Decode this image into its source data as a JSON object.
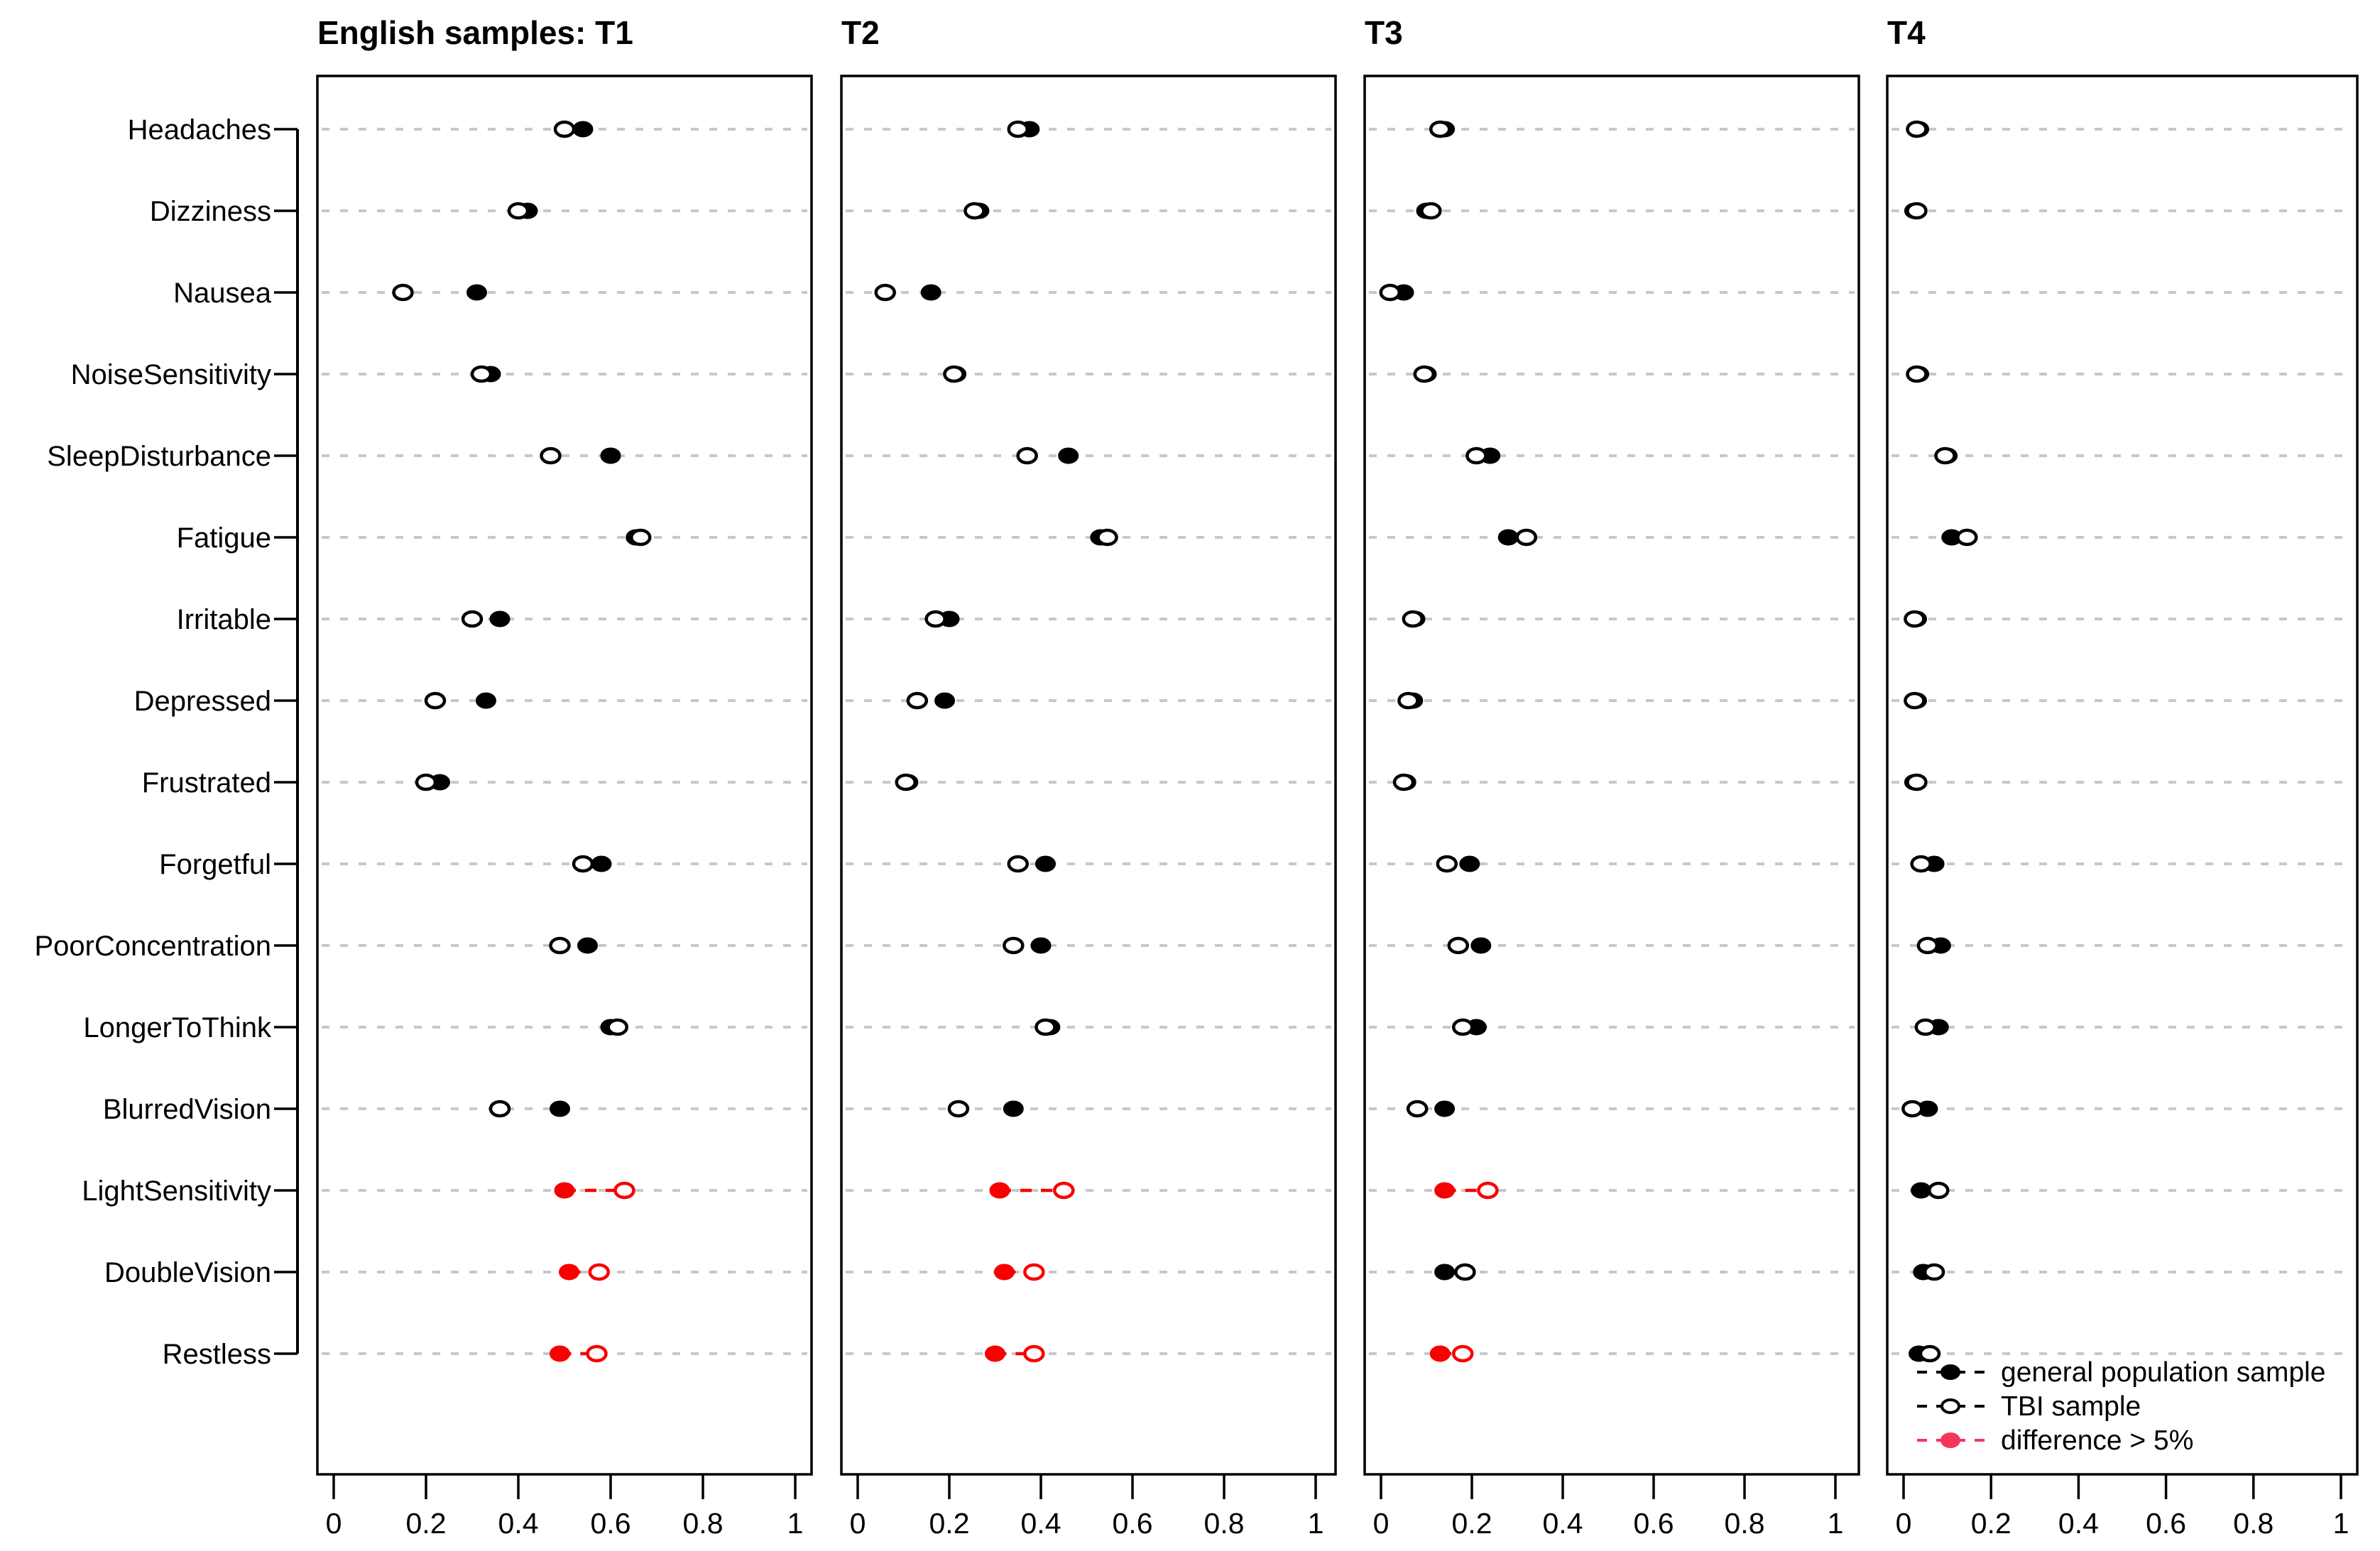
{
  "page": {
    "background": "#ffffff"
  },
  "colors": {
    "black": "#000000",
    "plot_red": "#f80000",
    "legend_red": "#f5365c",
    "grid": "#c8c8c8",
    "open_fill": "#ffffff"
  },
  "figure": {
    "panel_titles": [
      "English samples: T1",
      "T2",
      "T3",
      "T4"
    ],
    "legend": {
      "items": [
        {
          "label": "general population sample",
          "marker": "filled",
          "color": "#000000"
        },
        {
          "label": "TBI sample",
          "marker": "open",
          "color": "#000000"
        },
        {
          "label": "difference > 5%",
          "marker": "filled",
          "color": "#f5365c"
        }
      ]
    }
  },
  "chart_data": {
    "type": "scatter",
    "subtype": "Cleveland dot plot, 4 panels, proportion endorsing each symptom",
    "title": "English samples: T1 / T2 / T3 / T4",
    "categories": [
      "Headaches",
      "Dizziness",
      "Nausea",
      "NoiseSensitivity",
      "SleepDisturbance",
      "Fatigue",
      "Irritable",
      "Depressed",
      "Frustrated",
      "Forgetful",
      "PoorConcentration",
      "LongerToThink",
      "BlurredVision",
      "LightSensitivity",
      "DoubleVision",
      "Restless"
    ],
    "x_tick_labels": [
      "0",
      "0.2",
      "0.4",
      "0.6",
      "0.8",
      "1"
    ],
    "xlim": [
      0,
      1
    ],
    "grid": "dashed horizontal line per category",
    "legend_position": "bottom-right of T4 panel",
    "series_names": [
      "general population sample",
      "TBI sample"
    ],
    "panels": [
      {
        "title": "English samples: T1",
        "general": [
          0.54,
          0.42,
          0.31,
          0.34,
          0.6,
          0.655,
          0.36,
          0.33,
          0.23,
          0.58,
          0.55,
          0.6,
          0.49,
          0.5,
          0.51,
          0.49
        ],
        "tbi": [
          0.5,
          0.4,
          0.15,
          0.32,
          0.47,
          0.665,
          0.3,
          0.22,
          0.2,
          0.54,
          0.49,
          0.615,
          0.36,
          0.63,
          0.575,
          0.57
        ],
        "diff_gt_5pct": [
          false,
          false,
          false,
          false,
          false,
          false,
          false,
          false,
          false,
          false,
          false,
          false,
          false,
          true,
          true,
          true
        ]
      },
      {
        "title": "T2",
        "general": [
          0.375,
          0.265,
          0.16,
          0.215,
          0.46,
          0.53,
          0.2,
          0.19,
          0.11,
          0.41,
          0.4,
          0.42,
          0.34,
          0.31,
          0.32,
          0.3
        ],
        "tbi": [
          0.35,
          0.255,
          0.06,
          0.21,
          0.37,
          0.545,
          0.17,
          0.13,
          0.105,
          0.35,
          0.34,
          0.41,
          0.22,
          0.45,
          0.385,
          0.385
        ],
        "diff_gt_5pct": [
          false,
          false,
          false,
          false,
          false,
          false,
          false,
          false,
          false,
          false,
          false,
          false,
          false,
          true,
          true,
          true
        ]
      },
      {
        "title": "T3",
        "general": [
          0.14,
          0.1,
          0.05,
          0.1,
          0.24,
          0.28,
          0.075,
          0.07,
          0.055,
          0.195,
          0.22,
          0.21,
          0.14,
          0.14,
          0.14,
          0.13
        ],
        "tbi": [
          0.13,
          0.11,
          0.02,
          0.095,
          0.21,
          0.32,
          0.07,
          0.06,
          0.05,
          0.145,
          0.17,
          0.18,
          0.08,
          0.235,
          0.185,
          0.18
        ],
        "diff_gt_5pct": [
          false,
          false,
          false,
          false,
          false,
          false,
          false,
          false,
          false,
          false,
          false,
          false,
          false,
          true,
          false,
          true
        ]
      },
      {
        "title": "T4",
        "general": [
          0.035,
          0.025,
          null,
          0.035,
          0.1,
          0.11,
          0.03,
          0.03,
          0.025,
          0.07,
          0.085,
          0.08,
          0.055,
          0.04,
          0.045,
          0.035
        ],
        "tbi": [
          0.03,
          0.03,
          null,
          0.03,
          0.095,
          0.145,
          0.025,
          0.025,
          0.03,
          0.04,
          0.055,
          0.05,
          0.02,
          0.08,
          0.07,
          0.06
        ],
        "diff_gt_5pct": [
          false,
          false,
          false,
          false,
          false,
          false,
          false,
          false,
          false,
          false,
          false,
          false,
          false,
          false,
          false,
          false
        ]
      }
    ]
  }
}
